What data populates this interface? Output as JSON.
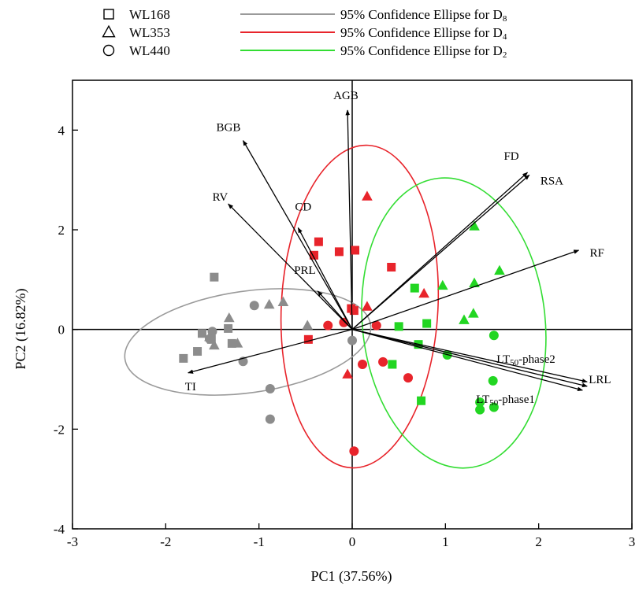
{
  "chart_data": {
    "type": "scatter",
    "subtype": "pca_biplot",
    "xlabel": "PC1 (37.56%)",
    "ylabel": "PC2 (16.82%)",
    "xlim": [
      -3,
      3
    ],
    "ylim": [
      -4,
      5
    ],
    "x_ticks": [
      "-3",
      "-2",
      "-1",
      "0",
      "1",
      "2",
      "3"
    ],
    "y_ticks": [
      "-4",
      "-2",
      "0",
      "2",
      "4"
    ],
    "legend": {
      "position": "top",
      "markers": [
        {
          "label": "WL168",
          "marker": "square"
        },
        {
          "label": "WL353",
          "marker": "triangle"
        },
        {
          "label": "WL440",
          "marker": "circle"
        }
      ],
      "ellipses": [
        {
          "label": "95% Confidence Ellipse for D8",
          "color": "#9a9a9a"
        },
        {
          "label": "95% Confidence Ellipse for D4",
          "color": "#e8242b"
        },
        {
          "label": "95% Confidence Ellipse for D2",
          "color": "#33dd33"
        }
      ]
    },
    "colors": {
      "D8": "#8c8c8c",
      "D4": "#e8242b",
      "D2": "#22d622"
    },
    "ellipses": [
      {
        "group": "D8",
        "cx": -1.12,
        "cy": -0.25,
        "rx": 1.33,
        "ry": 1.02,
        "angle": 8
      },
      {
        "group": "D4",
        "cx": 0.08,
        "cy": 0.46,
        "rx": 0.84,
        "ry": 3.24,
        "angle": -3
      },
      {
        "group": "D2",
        "cx": 1.09,
        "cy": 0.13,
        "rx": 0.98,
        "ry": 2.92,
        "angle": 6
      }
    ],
    "series": [
      {
        "group": "D8",
        "marker": "square",
        "points": [
          [
            -1.48,
            1.05
          ],
          [
            -1.61,
            -0.08
          ],
          [
            -1.33,
            0.02
          ],
          [
            -1.51,
            -0.2
          ],
          [
            -1.29,
            -0.28
          ],
          [
            -1.66,
            -0.44
          ],
          [
            -1.81,
            -0.58
          ]
        ]
      },
      {
        "group": "D8",
        "marker": "triangle",
        "points": [
          [
            -0.74,
            0.55
          ],
          [
            -0.89,
            0.5
          ],
          [
            -1.32,
            0.23
          ],
          [
            -0.48,
            0.08
          ],
          [
            -1.53,
            -0.15
          ],
          [
            -1.23,
            -0.28
          ],
          [
            -1.48,
            -0.32
          ]
        ]
      },
      {
        "group": "D8",
        "marker": "circle",
        "points": [
          [
            -1.05,
            0.48
          ],
          [
            -1.5,
            -0.04
          ],
          [
            -1.53,
            -0.19
          ],
          [
            -1.17,
            -0.64
          ],
          [
            -0.88,
            -1.19
          ],
          [
            -0.88,
            -1.8
          ],
          [
            0.0,
            -0.22
          ]
        ]
      },
      {
        "group": "D4",
        "marker": "square",
        "points": [
          [
            -0.36,
            1.76
          ],
          [
            -0.14,
            1.56
          ],
          [
            -0.41,
            1.49
          ],
          [
            0.03,
            1.59
          ],
          [
            0.42,
            1.25
          ],
          [
            -0.01,
            0.42
          ],
          [
            0.02,
            0.38
          ],
          [
            -0.47,
            -0.2
          ]
        ]
      },
      {
        "group": "D4",
        "marker": "triangle",
        "points": [
          [
            0.16,
            2.67
          ],
          [
            0.77,
            0.72
          ],
          [
            0.16,
            0.46
          ],
          [
            -0.05,
            -0.9
          ]
        ]
      },
      {
        "group": "D4",
        "marker": "circle",
        "points": [
          [
            -0.26,
            0.08
          ],
          [
            -0.09,
            0.14
          ],
          [
            0.26,
            0.08
          ],
          [
            0.33,
            -0.65
          ],
          [
            0.11,
            -0.7
          ],
          [
            0.6,
            -0.97
          ],
          [
            0.02,
            -2.44
          ]
        ]
      },
      {
        "group": "D2",
        "marker": "square",
        "points": [
          [
            0.67,
            0.83
          ],
          [
            0.5,
            0.06
          ],
          [
            0.8,
            0.12
          ],
          [
            0.71,
            -0.3
          ],
          [
            0.43,
            -0.7
          ],
          [
            0.74,
            -1.43
          ]
        ]
      },
      {
        "group": "D2",
        "marker": "triangle",
        "points": [
          [
            1.31,
            2.07
          ],
          [
            1.58,
            1.18
          ],
          [
            0.97,
            0.88
          ],
          [
            1.31,
            0.93
          ],
          [
            1.3,
            0.32
          ],
          [
            1.2,
            0.19
          ]
        ]
      },
      {
        "group": "D2",
        "marker": "circle",
        "points": [
          [
            1.52,
            -0.12
          ],
          [
            1.02,
            -0.51
          ],
          [
            1.51,
            -1.03
          ],
          [
            1.37,
            -1.46
          ],
          [
            1.37,
            -1.61
          ],
          [
            1.52,
            -1.56
          ]
        ]
      }
    ],
    "loadings": [
      {
        "label": "AGB",
        "end": [
          -0.05,
          4.4
        ]
      },
      {
        "label": "BGB",
        "end": [
          -1.17,
          3.79
        ]
      },
      {
        "label": "RV",
        "end": [
          -1.33,
          2.52
        ]
      },
      {
        "label": "CD",
        "end": [
          -0.58,
          2.04
        ]
      },
      {
        "label": "PRL",
        "end": [
          -0.37,
          0.77
        ]
      },
      {
        "label": "TI",
        "end": [
          -1.76,
          -0.87
        ]
      },
      {
        "label": "FD",
        "end": [
          1.88,
          3.15
        ]
      },
      {
        "label": "RSA",
        "end": [
          1.9,
          3.1
        ]
      },
      {
        "label": "RF",
        "end": [
          2.43,
          1.59
        ]
      },
      {
        "label": "LT50-phase2",
        "end": [
          2.52,
          -1.05
        ]
      },
      {
        "label": "LRL",
        "end": [
          2.52,
          -1.14
        ]
      },
      {
        "label": "LT50-phase1",
        "end": [
          2.47,
          -1.22
        ]
      }
    ]
  }
}
